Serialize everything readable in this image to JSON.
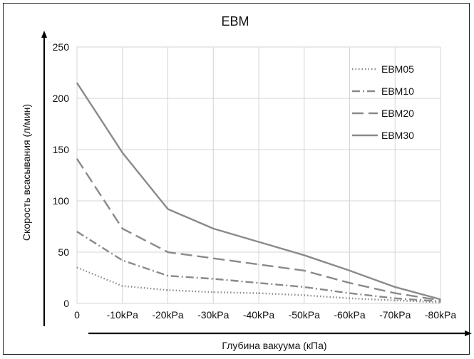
{
  "chart_data": {
    "type": "line",
    "title": "EBM",
    "xlabel": "Глубина вакуума (кПа)",
    "ylabel": "Скорость всасывания (л/мин)",
    "categories": [
      "0",
      "-10kPa",
      "-20kPa",
      "-30kPa",
      "-40kPa",
      "-50kPa",
      "-60kPa",
      "-70kPa",
      "-80kPa"
    ],
    "ylim": [
      0,
      250
    ],
    "yticks": [
      0,
      50,
      100,
      150,
      200,
      250
    ],
    "grid": true,
    "legend_position": "top-right",
    "series": [
      {
        "name": "EBM05",
        "style": "dotted",
        "color": "#8a8a8a",
        "values": [
          35,
          17,
          13,
          11,
          10,
          8,
          5,
          3,
          1
        ]
      },
      {
        "name": "EBM10",
        "style": "dashdot",
        "color": "#8a8a8a",
        "values": [
          70,
          42,
          27,
          24,
          20,
          16,
          10,
          5,
          2
        ]
      },
      {
        "name": "EBM20",
        "style": "longdash",
        "color": "#8a8a8a",
        "values": [
          141,
          73,
          50,
          44,
          38,
          32,
          20,
          10,
          3
        ]
      },
      {
        "name": "EBM30",
        "style": "solid",
        "color": "#8a8a8a",
        "values": [
          215,
          147,
          92,
          73,
          60,
          47,
          32,
          16,
          4
        ]
      }
    ]
  }
}
